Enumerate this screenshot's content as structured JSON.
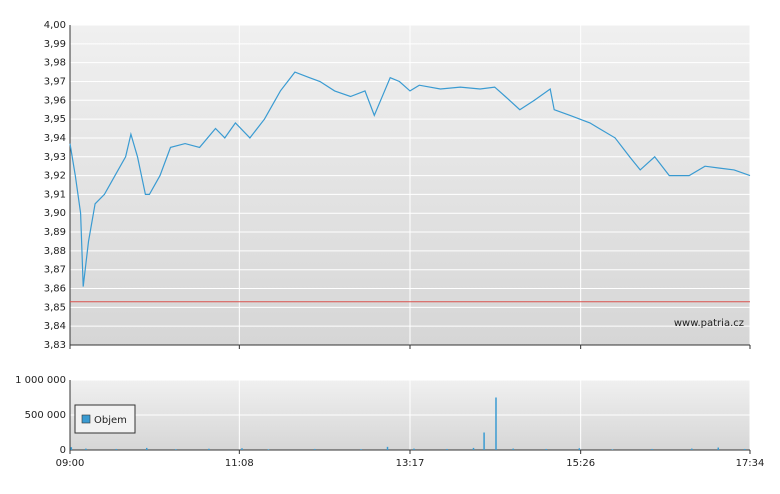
{
  "chart_data": [
    {
      "type": "line",
      "watermark": "www.patria.cz",
      "x": [
        "09:00",
        "09:04",
        "09:08",
        "09:10",
        "09:14",
        "09:19",
        "09:26",
        "09:34",
        "09:42",
        "09:46",
        "09:51",
        "09:57",
        "10:00",
        "10:08",
        "10:16",
        "10:27",
        "10:38",
        "10:50",
        "10:57",
        "11:05",
        "11:16",
        "11:27",
        "11:39",
        "11:50",
        "12:01",
        "12:09",
        "12:20",
        "12:32",
        "12:43",
        "12:50",
        "13:02",
        "13:09",
        "13:17",
        "13:24",
        "13:40",
        "13:55",
        "14:10",
        "14:21",
        "14:29",
        "14:40",
        "14:51",
        "15:03",
        "15:06",
        "15:18",
        "15:33",
        "15:40",
        "15:52",
        "16:03",
        "16:11",
        "16:22",
        "16:33",
        "16:48",
        "17:00",
        "17:11",
        "17:22",
        "17:34"
      ],
      "series": [
        {
          "color": "#3a9bd2",
          "values": [
            3.937,
            3.92,
            3.9,
            3.861,
            3.885,
            3.905,
            3.91,
            3.92,
            3.93,
            3.942,
            3.93,
            3.91,
            3.91,
            3.92,
            3.935,
            3.937,
            3.935,
            3.945,
            3.94,
            3.948,
            3.94,
            3.95,
            3.965,
            3.975,
            3.972,
            3.97,
            3.965,
            3.962,
            3.965,
            3.952,
            3.972,
            3.97,
            3.965,
            3.968,
            3.966,
            3.967,
            3.966,
            3.967,
            3.962,
            3.955,
            3.96,
            3.966,
            3.955,
            3.952,
            3.948,
            3.945,
            3.94,
            3.93,
            3.923,
            3.93,
            3.92,
            3.92,
            3.925,
            3.924,
            3.923,
            3.92
          ]
        }
      ],
      "reference_line": 3.853,
      "reference_color": "#d9534f",
      "xlim": [
        "09:00",
        "17:34"
      ],
      "xticks": [
        "09:00",
        "11:08",
        "13:17",
        "15:26",
        "17:34"
      ],
      "ylim": [
        3.83,
        4.0
      ],
      "yticks": [
        {
          "value": 3.83,
          "label": "3,83"
        },
        {
          "value": 3.84,
          "label": "3,84"
        },
        {
          "value": 3.85,
          "label": "3,85"
        },
        {
          "value": 3.86,
          "label": "3,86"
        },
        {
          "value": 3.87,
          "label": "3,87"
        },
        {
          "value": 3.88,
          "label": "3,88"
        },
        {
          "value": 3.89,
          "label": "3,89"
        },
        {
          "value": 3.9,
          "label": "3,90"
        },
        {
          "value": 3.91,
          "label": "3,91"
        },
        {
          "value": 3.92,
          "label": "3,92"
        },
        {
          "value": 3.93,
          "label": "3,93"
        },
        {
          "value": 3.94,
          "label": "3,94"
        },
        {
          "value": 3.95,
          "label": "3,95"
        },
        {
          "value": 3.96,
          "label": "3,96"
        },
        {
          "value": 3.97,
          "label": "3,97"
        },
        {
          "value": 3.98,
          "label": "3,98"
        },
        {
          "value": 3.99,
          "label": "3,99"
        },
        {
          "value": 4.0,
          "label": "4,00"
        }
      ],
      "grid": true
    },
    {
      "type": "bar",
      "x": [
        "09:01",
        "09:12",
        "09:35",
        "09:58",
        "10:20",
        "10:45",
        "11:10",
        "11:30",
        "12:05",
        "12:40",
        "13:00",
        "13:20",
        "13:45",
        "14:05",
        "14:13",
        "14:22",
        "14:35",
        "15:00",
        "15:25",
        "15:50",
        "16:20",
        "16:50",
        "17:10",
        "17:30"
      ],
      "series": [
        {
          "name": "Objem",
          "color": "#3a9bd2",
          "values": [
            40000,
            20000,
            15000,
            30000,
            12000,
            18000,
            25000,
            10000,
            15000,
            12000,
            45000,
            20000,
            15000,
            30000,
            250000,
            750000,
            20000,
            15000,
            25000,
            10000,
            15000,
            20000,
            35000,
            15000
          ]
        }
      ],
      "xlim": [
        "09:00",
        "17:34"
      ],
      "xticks": [
        "09:00",
        "11:08",
        "13:17",
        "15:26",
        "17:34"
      ],
      "ylim": [
        0,
        1000000
      ],
      "yticks": [
        {
          "value": 0,
          "label": "0"
        },
        {
          "value": 500000,
          "label": "500 000"
        },
        {
          "value": 1000000,
          "label": "1 000 000"
        }
      ],
      "grid": true
    }
  ]
}
